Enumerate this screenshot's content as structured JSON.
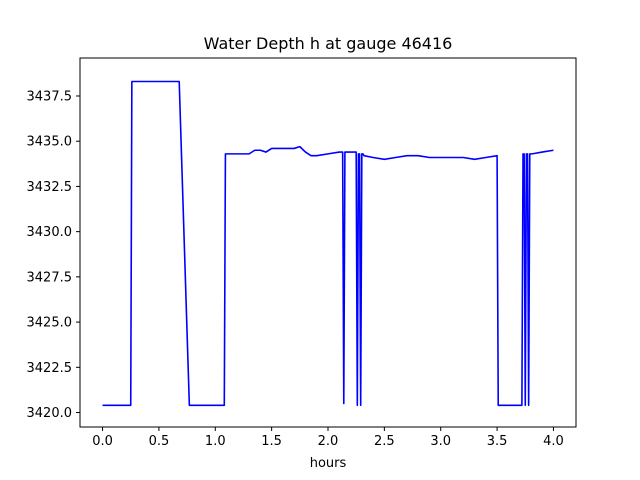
{
  "chart_data": {
    "type": "line",
    "title": "Water Depth h at gauge 46416",
    "xlabel": "hours",
    "ylabel": "",
    "xlim": [
      -0.2,
      4.2
    ],
    "ylim": [
      3419.2,
      3439.6
    ],
    "x_ticks": [
      0.0,
      0.5,
      1.0,
      1.5,
      2.0,
      2.5,
      3.0,
      3.5,
      4.0
    ],
    "x_tick_labels": [
      "0.0",
      "0.5",
      "1.0",
      "1.5",
      "2.0",
      "2.5",
      "3.0",
      "3.5",
      "4.0"
    ],
    "y_ticks": [
      3420.0,
      3422.5,
      3425.0,
      3427.5,
      3430.0,
      3432.5,
      3435.0,
      3437.5
    ],
    "y_tick_labels": [
      "3420.0",
      "3422.5",
      "3425.0",
      "3427.5",
      "3430.0",
      "3432.5",
      "3435.0",
      "3437.5"
    ],
    "grid": false,
    "series": [
      {
        "color": "#0000ff",
        "x": [
          0.0,
          0.25,
          0.26,
          0.68,
          0.77,
          1.08,
          1.09,
          1.2,
          1.3,
          1.35,
          1.4,
          1.45,
          1.5,
          1.55,
          1.6,
          1.65,
          1.7,
          1.75,
          1.8,
          1.85,
          1.9,
          2.0,
          2.1,
          2.13,
          2.14,
          2.15,
          2.16,
          2.25,
          2.26,
          2.27,
          2.28,
          2.29,
          2.3,
          2.31,
          2.32,
          2.4,
          2.5,
          2.6,
          2.7,
          2.8,
          2.9,
          3.0,
          3.1,
          3.2,
          3.3,
          3.4,
          3.5,
          3.51,
          3.72,
          3.73,
          3.74,
          3.75,
          3.76,
          3.77,
          3.78,
          3.79,
          3.8,
          3.81,
          3.9,
          4.0
        ],
        "y": [
          3420.4,
          3420.4,
          3438.3,
          3438.3,
          3420.4,
          3420.4,
          3434.3,
          3434.3,
          3434.3,
          3434.5,
          3434.5,
          3434.4,
          3434.6,
          3434.6,
          3434.6,
          3434.6,
          3434.6,
          3434.7,
          3434.4,
          3434.2,
          3434.2,
          3434.3,
          3434.4,
          3434.4,
          3420.5,
          3434.4,
          3434.4,
          3434.4,
          3420.4,
          3434.3,
          3434.3,
          3420.4,
          3434.3,
          3434.3,
          3434.2,
          3434.1,
          3434.0,
          3434.1,
          3434.2,
          3434.2,
          3434.1,
          3434.1,
          3434.1,
          3434.1,
          3434.0,
          3434.1,
          3434.2,
          3420.4,
          3420.4,
          3434.3,
          3434.3,
          3420.4,
          3434.3,
          3434.3,
          3420.4,
          3434.3,
          3434.3,
          3434.3,
          3434.4,
          3434.5
        ]
      }
    ]
  }
}
